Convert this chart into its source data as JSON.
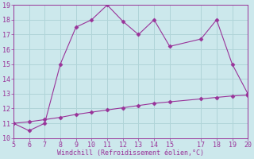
{
  "line1_x": [
    5,
    6,
    7,
    8,
    9,
    10,
    11,
    12,
    13,
    14,
    15,
    17,
    18,
    19,
    20
  ],
  "line1_y": [
    11,
    10.5,
    11,
    15,
    17.5,
    18,
    19,
    17.9,
    17,
    18,
    16.2,
    16.7,
    18,
    15,
    13
  ],
  "line2_x": [
    5,
    6,
    7,
    8,
    9,
    10,
    11,
    12,
    13,
    14,
    15,
    17,
    18,
    19,
    20
  ],
  "line2_y": [
    11.0,
    11.1,
    11.25,
    11.4,
    11.6,
    11.75,
    11.9,
    12.05,
    12.2,
    12.35,
    12.45,
    12.65,
    12.75,
    12.85,
    12.9
  ],
  "line_color": "#993399",
  "bg_color": "#cce8ec",
  "xlabel": "Windchill (Refroidissement éolien,°C)",
  "xlim": [
    5,
    20
  ],
  "ylim": [
    10,
    19
  ],
  "xticks": [
    5,
    6,
    7,
    8,
    9,
    10,
    11,
    12,
    13,
    14,
    15,
    17,
    18,
    19,
    20
  ],
  "yticks": [
    10,
    11,
    12,
    13,
    14,
    15,
    16,
    17,
    18,
    19
  ],
  "grid_color": "#b0d4d8",
  "tick_color": "#993399",
  "label_color": "#993399",
  "marker": "D",
  "markersize": 2.5,
  "xlabel_fontsize": 6,
  "tick_fontsize": 6
}
